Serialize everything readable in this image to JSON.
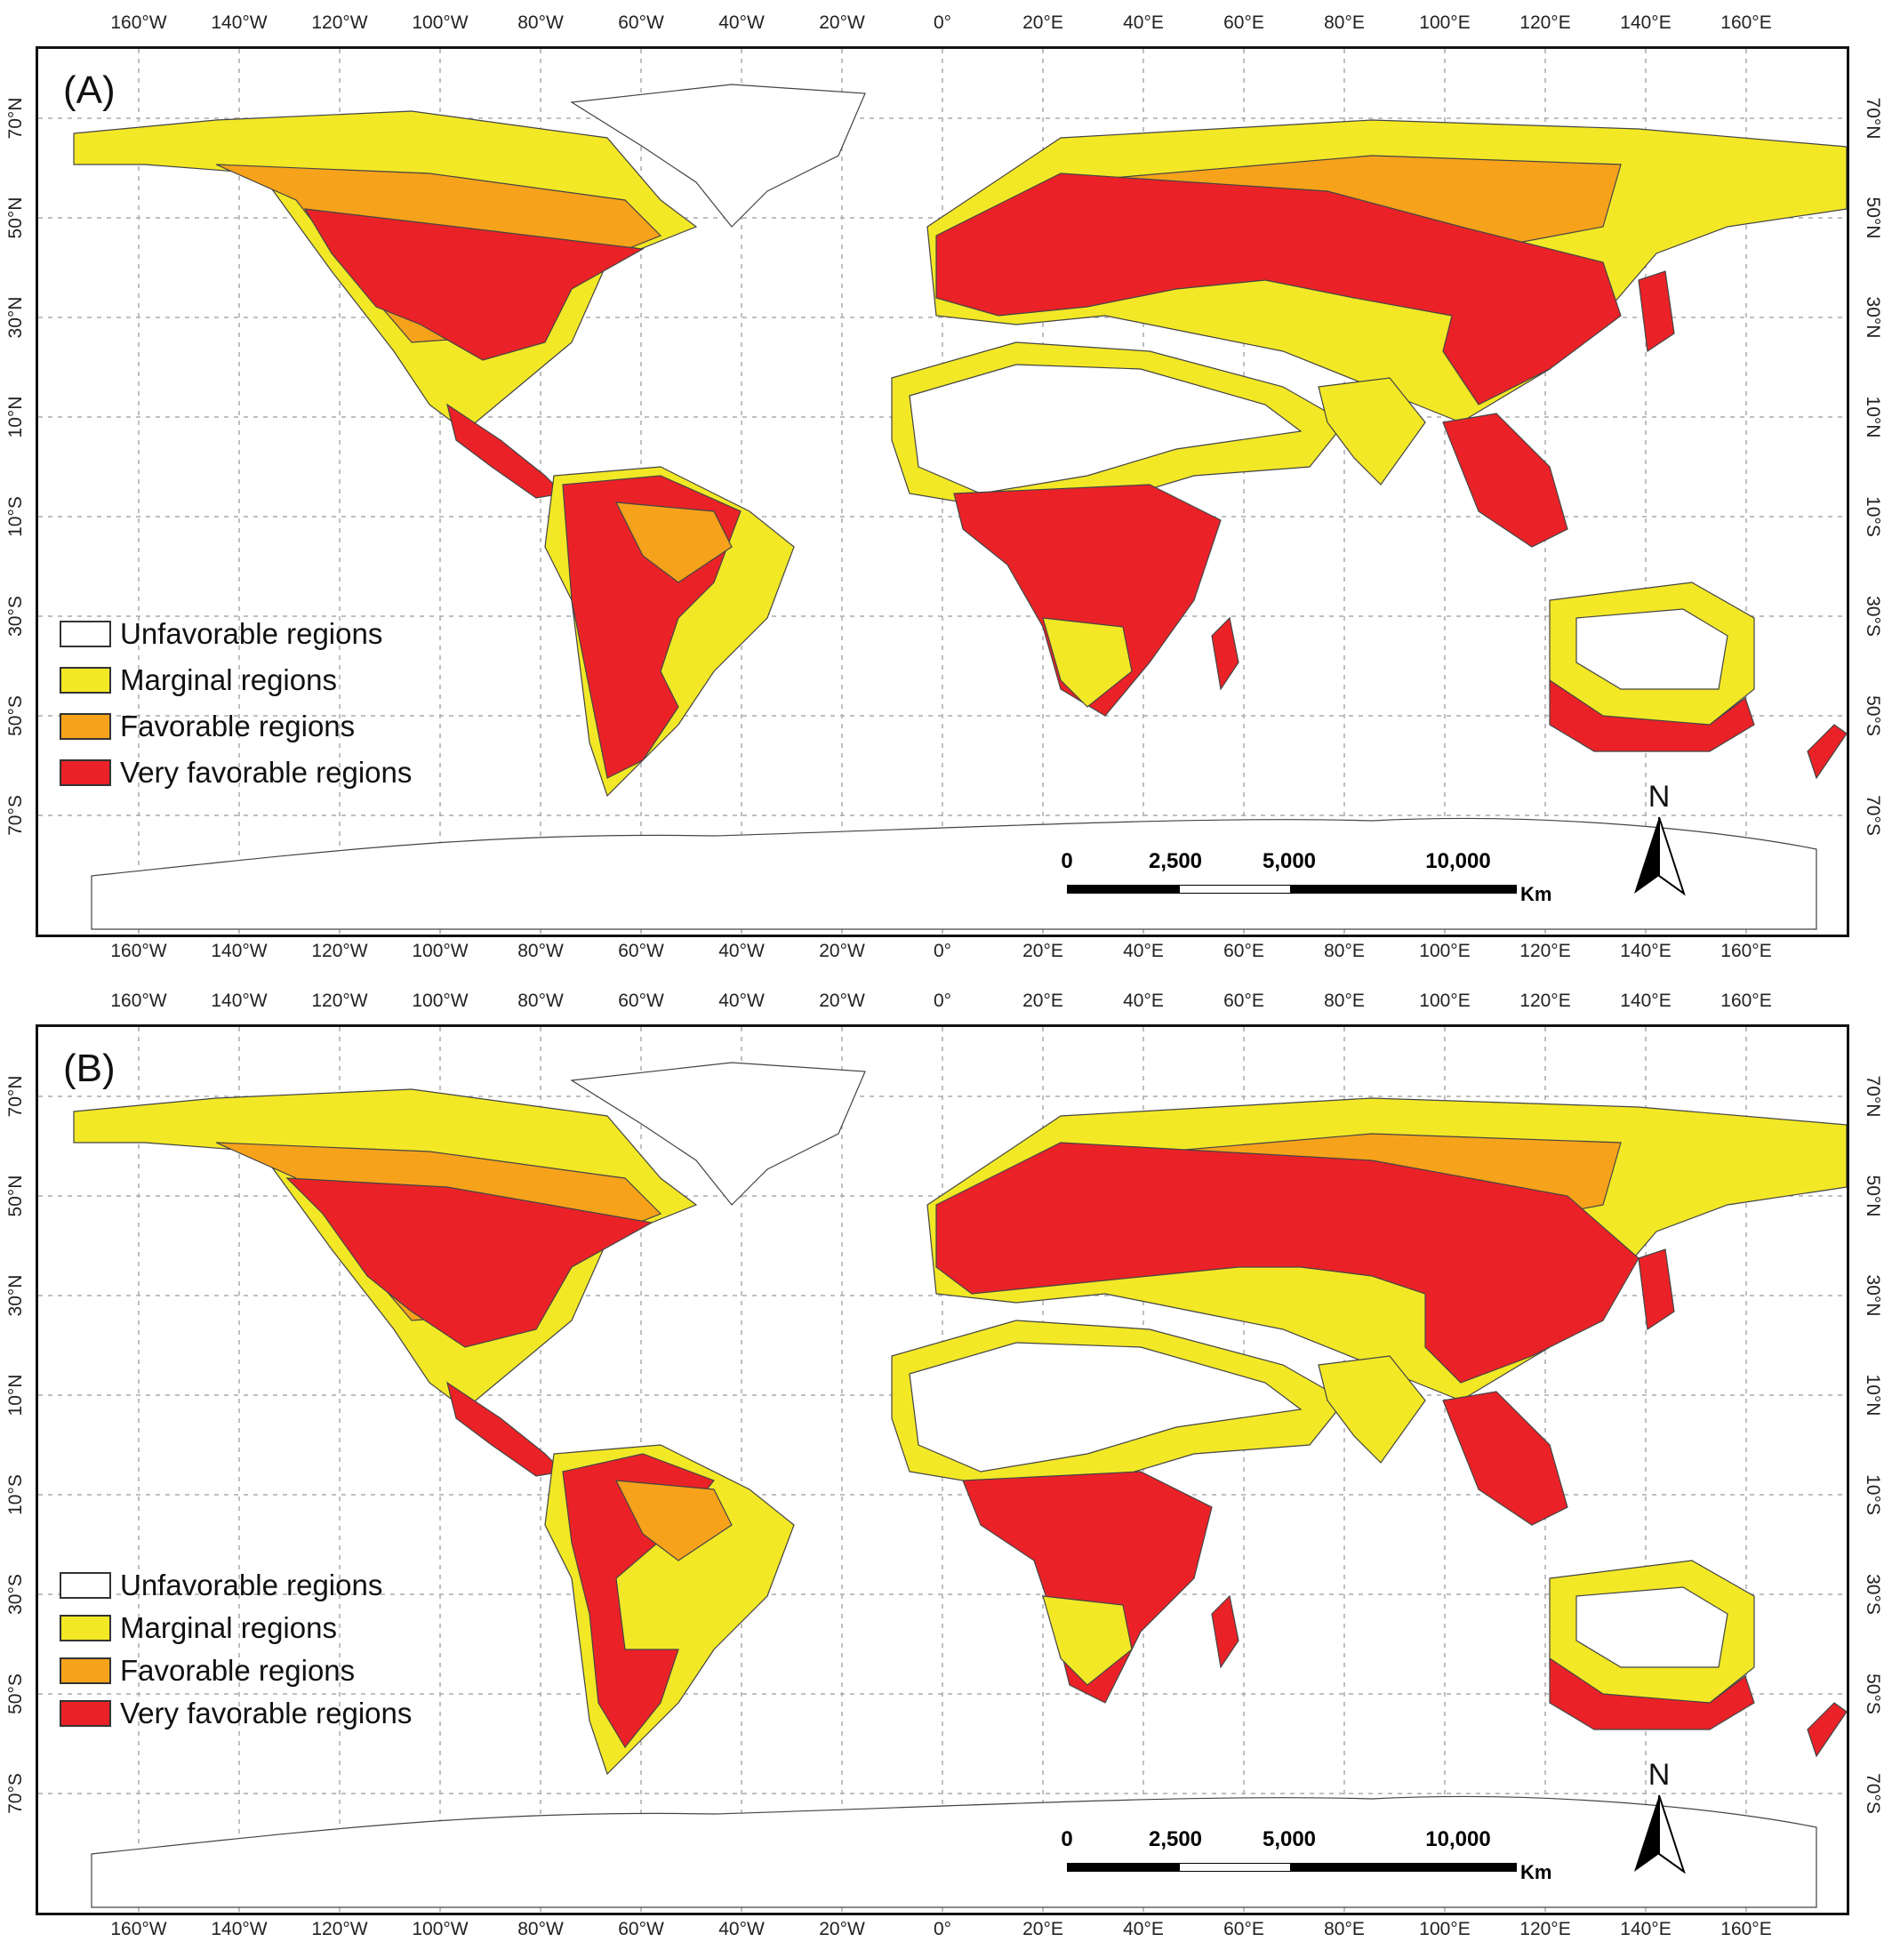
{
  "figure": {
    "panels": [
      {
        "label": "(A)",
        "legend": [
          {
            "label": "Unfavorable regions",
            "color": "#ffffff"
          },
          {
            "label": "Marginal regions",
            "color": "#f2e826"
          },
          {
            "label": "Favorable regions",
            "color": "#f7a21b"
          },
          {
            "label": "Very favorable regions",
            "color": "#ea2227"
          }
        ]
      },
      {
        "label": "(B)",
        "legend": [
          {
            "label": "Unfavorable regions",
            "color": "#ffffff"
          },
          {
            "label": "Marginal regions",
            "color": "#f2e826"
          },
          {
            "label": "Favorable regions",
            "color": "#f7a21b"
          },
          {
            "label": "Very favorable regions",
            "color": "#ea2227"
          }
        ]
      }
    ],
    "longitude_ticks": [
      "160°W",
      "140°W",
      "120°W",
      "100°W",
      "80°W",
      "60°W",
      "40°W",
      "20°W",
      "0°",
      "20°E",
      "40°E",
      "60°E",
      "80°E",
      "100°E",
      "120°E",
      "140°E",
      "160°E"
    ],
    "latitude_ticks": [
      "70°N",
      "50°N",
      "30°N",
      "10°N",
      "10°S",
      "30°S",
      "50°S",
      "70°S"
    ],
    "scale_bar": {
      "labels": [
        "0",
        "2,500",
        "5,000",
        "10,000"
      ],
      "unit": "Km"
    },
    "north_arrow": {
      "label": "N"
    }
  }
}
